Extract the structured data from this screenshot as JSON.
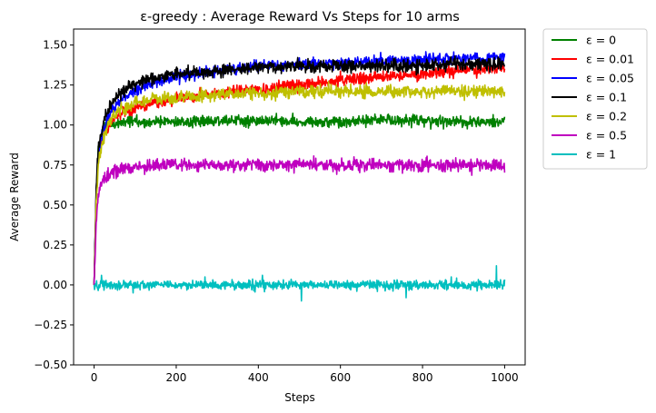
{
  "chart_data": {
    "type": "line",
    "title": "ε-greedy : Average Reward Vs Steps for 10 arms",
    "xlabel": "Steps",
    "ylabel": "Average Reward",
    "xlim": [
      -50,
      1050
    ],
    "ylim": [
      -0.5,
      1.6
    ],
    "xticks": [
      0,
      200,
      400,
      600,
      800,
      1000
    ],
    "xtick_labels": [
      "0",
      "200",
      "400",
      "600",
      "800",
      "1000"
    ],
    "yticks": [
      -0.5,
      -0.25,
      0.0,
      0.25,
      0.5,
      0.75,
      1.0,
      1.25,
      1.5
    ],
    "ytick_labels": [
      "−0.50",
      "−0.25",
      "0.00",
      "0.25",
      "0.50",
      "0.75",
      "1.00",
      "1.25",
      "1.50"
    ],
    "grid": false,
    "legend_placement": "outside-upper-right",
    "steps": 1000,
    "x": [
      0,
      5,
      10,
      20,
      30,
      50,
      75,
      100,
      150,
      200,
      250,
      300,
      350,
      400,
      500,
      600,
      700,
      800,
      900,
      1000
    ],
    "series": [
      {
        "name": "ε = 0",
        "color": "#008000",
        "noise": 0.025,
        "spikes": [],
        "values": [
          0.0,
          0.55,
          0.85,
          0.97,
          1.0,
          1.01,
          1.02,
          1.02,
          1.02,
          1.02,
          1.02,
          1.02,
          1.03,
          1.03,
          1.02,
          1.02,
          1.03,
          1.03,
          1.02,
          1.02
        ]
      },
      {
        "name": "ε = 0.01",
        "color": "#ff0000",
        "noise": 0.025,
        "spikes": [],
        "values": [
          0.0,
          0.55,
          0.8,
          0.92,
          0.98,
          1.04,
          1.08,
          1.1,
          1.14,
          1.16,
          1.18,
          1.2,
          1.21,
          1.22,
          1.25,
          1.28,
          1.3,
          1.32,
          1.34,
          1.36
        ]
      },
      {
        "name": "ε = 0.05",
        "color": "#0000ff",
        "noise": 0.025,
        "spikes": [],
        "values": [
          0.0,
          0.55,
          0.82,
          0.95,
          1.03,
          1.12,
          1.17,
          1.21,
          1.27,
          1.3,
          1.32,
          1.34,
          1.35,
          1.37,
          1.38,
          1.39,
          1.4,
          1.41,
          1.42,
          1.42
        ]
      },
      {
        "name": "ε = 0.1",
        "color": "#000000",
        "noise": 0.028,
        "spikes": [],
        "values": [
          0.0,
          0.6,
          0.85,
          0.98,
          1.08,
          1.17,
          1.22,
          1.26,
          1.3,
          1.32,
          1.33,
          1.34,
          1.35,
          1.36,
          1.37,
          1.37,
          1.37,
          1.37,
          1.38,
          1.38
        ]
      },
      {
        "name": "ε = 0.2",
        "color": "#bfbf00",
        "noise": 0.028,
        "spikes": [],
        "values": [
          0.0,
          0.5,
          0.75,
          0.9,
          0.98,
          1.07,
          1.11,
          1.14,
          1.16,
          1.17,
          1.18,
          1.19,
          1.2,
          1.2,
          1.21,
          1.21,
          1.21,
          1.21,
          1.21,
          1.21
        ]
      },
      {
        "name": "ε = 0.5",
        "color": "#bf00bf",
        "noise": 0.028,
        "spikes": [],
        "values": [
          0.0,
          0.4,
          0.55,
          0.64,
          0.68,
          0.71,
          0.73,
          0.74,
          0.75,
          0.75,
          0.75,
          0.75,
          0.75,
          0.75,
          0.75,
          0.75,
          0.75,
          0.75,
          0.75,
          0.75
        ]
      },
      {
        "name": "ε = 1",
        "color": "#00bfbf",
        "noise": 0.02,
        "spikes": [
          [
            18,
            0.06
          ],
          [
            95,
            -0.05
          ],
          [
            270,
            0.05
          ],
          [
            410,
            0.06
          ],
          [
            505,
            -0.1
          ],
          [
            640,
            -0.04
          ],
          [
            760,
            -0.08
          ],
          [
            870,
            0.05
          ],
          [
            980,
            0.12
          ]
        ],
        "values": [
          0.0,
          0.0,
          0.0,
          0.0,
          0.0,
          0.0,
          0.0,
          0.0,
          0.0,
          0.0,
          0.0,
          0.0,
          0.0,
          0.0,
          0.0,
          0.0,
          0.0,
          0.0,
          0.0,
          0.0
        ]
      }
    ]
  }
}
